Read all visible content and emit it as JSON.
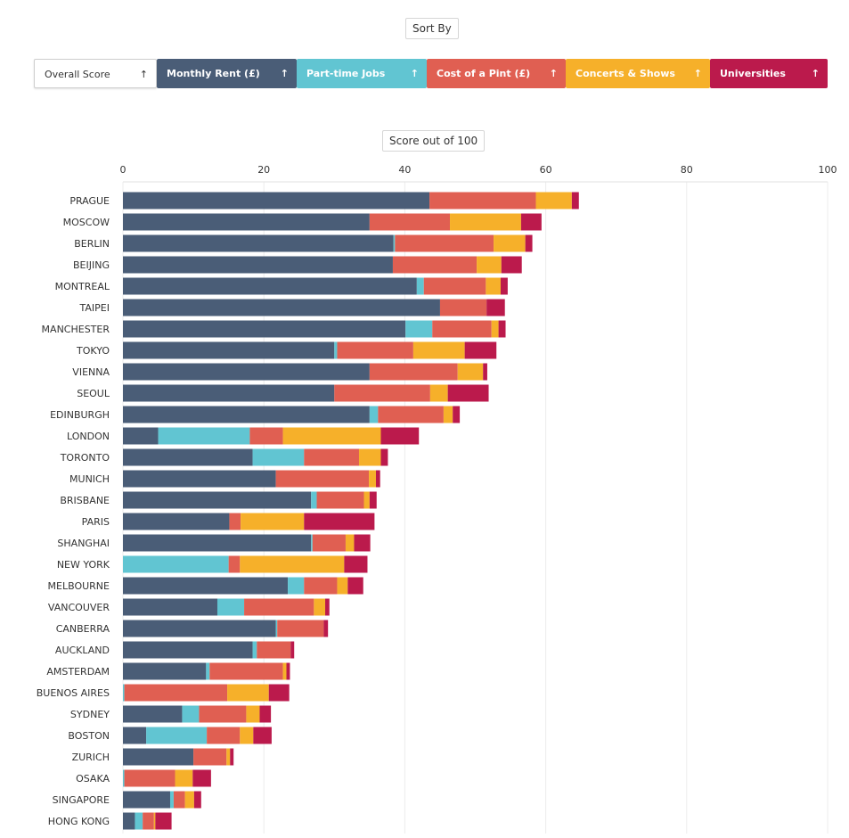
{
  "sort_by_label": "Sort By",
  "score_label": "Score out of 100",
  "sort_buttons": [
    {
      "label": "Overall Score",
      "arrow": "↑",
      "color": "#ffffff"
    },
    {
      "label": "Monthly Rent (£)",
      "arrow": "↑",
      "color": "#4a5d77"
    },
    {
      "label": "Part-time Jobs",
      "arrow": "↑",
      "color": "#61c5d2"
    },
    {
      "label": "Cost of a Pint (£)",
      "arrow": "↑",
      "color": "#e05f52"
    },
    {
      "label": "Concerts & Shows",
      "arrow": "↑",
      "color": "#f6b02a"
    },
    {
      "label": "Universities",
      "arrow": "↑",
      "color": "#bb1a4c"
    }
  ],
  "chart_data": {
    "type": "bar",
    "orientation": "horizontal",
    "stacked": true,
    "xlabel": "Score out of 100",
    "xlim": [
      0,
      100
    ],
    "xticks": [
      0,
      20,
      40,
      60,
      80,
      100
    ],
    "grid": true,
    "categories": [
      "PRAGUE",
      "MOSCOW",
      "BERLIN",
      "BEIJING",
      "MONTREAL",
      "TAIPEI",
      "MANCHESTER",
      "TOKYO",
      "VIENNA",
      "SEOUL",
      "EDINBURGH",
      "LONDON",
      "TORONTO",
      "MUNICH",
      "BRISBANE",
      "PARIS",
      "SHANGHAI",
      "NEW YORK",
      "MELBOURNE",
      "VANCOUVER",
      "CANBERRA",
      "AUCKLAND",
      "AMSTERDAM",
      "BUENOS AIRES",
      "SYDNEY",
      "BOSTON",
      "ZURICH",
      "OSAKA",
      "SINGAPORE",
      "HONG KONG"
    ],
    "series": [
      {
        "name": "Monthly Rent (£)",
        "color": "#4a5d77",
        "values": [
          43.5,
          35,
          38.4,
          38.3,
          41.7,
          45,
          40.1,
          30,
          35,
          30,
          35,
          5,
          18.4,
          21.7,
          26.7,
          15.1,
          26.7,
          0,
          23.4,
          13.4,
          21.7,
          18.4,
          11.8,
          0,
          8.4,
          3.3,
          10,
          0,
          6.7,
          1.7
        ]
      },
      {
        "name": "Part-time Jobs",
        "color": "#61c5d2",
        "values": [
          0,
          0,
          0.2,
          0,
          1,
          0,
          3.8,
          0.4,
          0,
          0,
          1.2,
          13,
          7.3,
          0,
          0.8,
          0,
          0.2,
          15,
          2.3,
          3.8,
          0.2,
          0.6,
          0.5,
          0.2,
          2.4,
          8.6,
          0,
          0.2,
          0.5,
          1.1
        ]
      },
      {
        "name": "Cost of a Pint (£)",
        "color": "#e05f52",
        "values": [
          15.1,
          11.4,
          14,
          11.9,
          8.8,
          6.6,
          8.4,
          10.8,
          12.5,
          13.6,
          9.3,
          4.7,
          7.8,
          13.2,
          6.7,
          1.6,
          4.7,
          1.6,
          4.7,
          9.9,
          6.6,
          4.8,
          10.4,
          14.6,
          6.7,
          4.7,
          4.7,
          7.2,
          1.6,
          1.6
        ]
      },
      {
        "name": "Concerts & Shows",
        "color": "#f6b02a",
        "values": [
          5.1,
          10.1,
          4.5,
          3.5,
          2.1,
          0,
          1,
          7.3,
          3.6,
          2.5,
          1.3,
          13.9,
          3.1,
          1,
          0.8,
          9,
          1.2,
          14.8,
          1.5,
          1.6,
          0,
          0,
          0.5,
          5.9,
          1.9,
          1.9,
          0.5,
          2.5,
          1.3,
          0.2
        ]
      },
      {
        "name": "Universities",
        "color": "#bb1a4c",
        "values": [
          1,
          2.9,
          1,
          2.9,
          1,
          2.6,
          1,
          4.5,
          0.6,
          5.8,
          1,
          5.4,
          1,
          0.6,
          1,
          10,
          2.3,
          3.3,
          2.2,
          0.6,
          0.6,
          0.5,
          0.5,
          2.9,
          1.6,
          2.6,
          0.5,
          2.6,
          1,
          2.3
        ]
      }
    ]
  }
}
